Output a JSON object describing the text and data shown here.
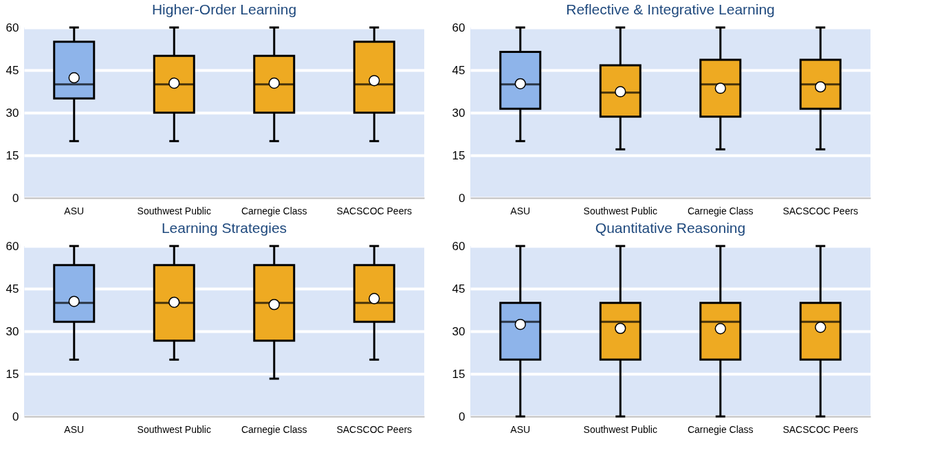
{
  "chart_data": [
    {
      "type": "box",
      "title": "Higher-Order Learning",
      "categories": [
        "ASU",
        "Southwest Public",
        "Carnegie Class",
        "SACSCOC Peers"
      ],
      "colors": [
        "#8eb4ea",
        "#eeaa22",
        "#eeaa22",
        "#eeaa22"
      ],
      "ylim": [
        0,
        60
      ],
      "yticks": [
        0,
        15,
        30,
        45,
        60
      ],
      "grid": "y",
      "boxes": [
        {
          "low": 20,
          "q1": 35,
          "median": 40,
          "q3": 55,
          "high": 60,
          "mean": 42.3
        },
        {
          "low": 20,
          "q1": 30,
          "median": 40,
          "q3": 50,
          "high": 60,
          "mean": 40.4
        },
        {
          "low": 20,
          "q1": 30,
          "median": 40,
          "q3": 50,
          "high": 60,
          "mean": 40.4
        },
        {
          "low": 20,
          "q1": 30,
          "median": 40,
          "q3": 55,
          "high": 60,
          "mean": 41.3
        }
      ]
    },
    {
      "type": "box",
      "title": "Reflective & Integrative Learning",
      "categories": [
        "ASU",
        "Southwest Public",
        "Carnegie Class",
        "SACSCOC Peers"
      ],
      "colors": [
        "#8eb4ea",
        "#eeaa22",
        "#eeaa22",
        "#eeaa22"
      ],
      "ylim": [
        0,
        60
      ],
      "yticks": [
        0,
        15,
        30,
        45,
        60
      ],
      "grid": "y",
      "boxes": [
        {
          "low": 20,
          "q1": 31.4,
          "median": 40,
          "q3": 51.4,
          "high": 60,
          "mean": 40.2
        },
        {
          "low": 17.1,
          "q1": 28.6,
          "median": 37.1,
          "q3": 46.7,
          "high": 60,
          "mean": 37.4
        },
        {
          "low": 17.1,
          "q1": 28.6,
          "median": 40,
          "q3": 48.6,
          "high": 60,
          "mean": 38.6
        },
        {
          "low": 17.1,
          "q1": 31.4,
          "median": 40,
          "q3": 48.6,
          "high": 60,
          "mean": 39.1
        }
      ]
    },
    {
      "type": "box",
      "title": "Learning Strategies",
      "categories": [
        "ASU",
        "Southwest Public",
        "Carnegie Class",
        "SACSCOC Peers"
      ],
      "colors": [
        "#8eb4ea",
        "#eeaa22",
        "#eeaa22",
        "#eeaa22"
      ],
      "ylim": [
        0,
        60
      ],
      "yticks": [
        0,
        15,
        30,
        45,
        60
      ],
      "grid": "y",
      "boxes": [
        {
          "low": 20,
          "q1": 33.3,
          "median": 40,
          "q3": 53.3,
          "high": 60,
          "mean": 40.5
        },
        {
          "low": 20,
          "q1": 26.7,
          "median": 40,
          "q3": 53.3,
          "high": 60,
          "mean": 40.2
        },
        {
          "low": 13.3,
          "q1": 26.7,
          "median": 40,
          "q3": 53.3,
          "high": 60,
          "mean": 39.4
        },
        {
          "low": 20,
          "q1": 33.3,
          "median": 40,
          "q3": 53.3,
          "high": 60,
          "mean": 41.5
        }
      ]
    },
    {
      "type": "box",
      "title": "Quantitative Reasoning",
      "categories": [
        "ASU",
        "Southwest Public",
        "Carnegie Class",
        "SACSCOC Peers"
      ],
      "colors": [
        "#8eb4ea",
        "#eeaa22",
        "#eeaa22",
        "#eeaa22"
      ],
      "ylim": [
        0,
        60
      ],
      "yticks": [
        0,
        15,
        30,
        45,
        60
      ],
      "grid": "y",
      "boxes": [
        {
          "low": 0,
          "q1": 20,
          "median": 33.3,
          "q3": 40,
          "high": 60,
          "mean": 32.4
        },
        {
          "low": 0,
          "q1": 20,
          "median": 33.3,
          "q3": 40,
          "high": 60,
          "mean": 31.0
        },
        {
          "low": 0,
          "q1": 20,
          "median": 33.3,
          "q3": 40,
          "high": 60,
          "mean": 30.9
        },
        {
          "low": 0,
          "q1": 20,
          "median": 33.3,
          "q3": 40,
          "high": 60,
          "mean": 31.4
        }
      ]
    }
  ]
}
